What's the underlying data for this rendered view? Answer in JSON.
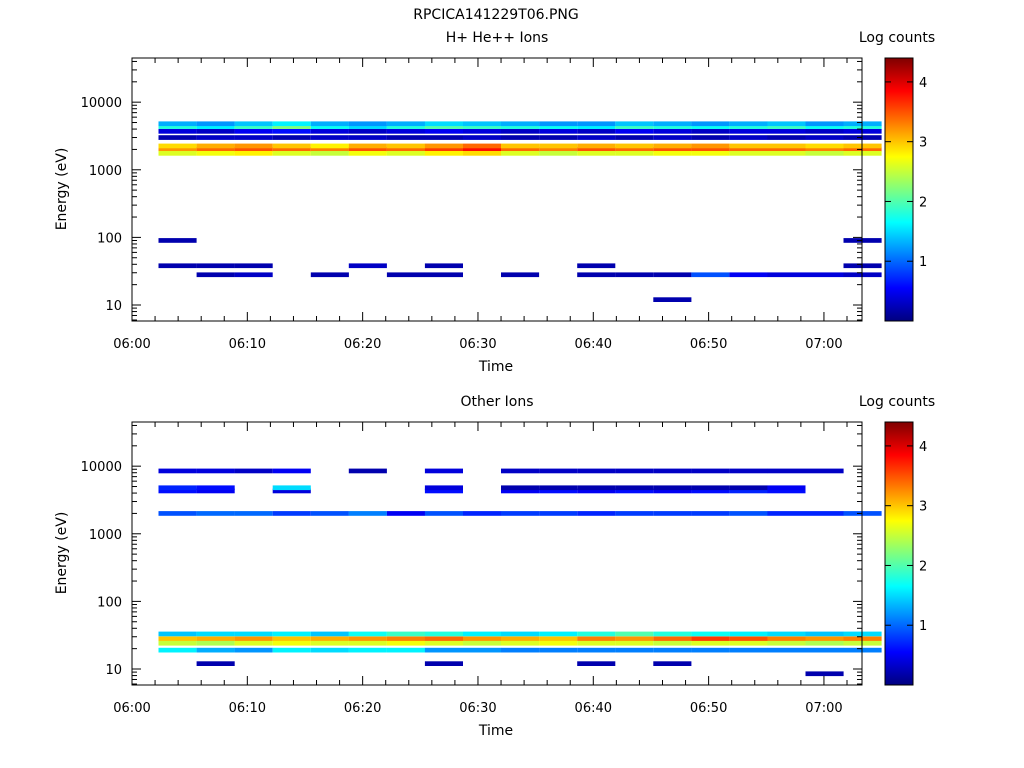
{
  "figure_title": "RPCICA141229T06.PNG",
  "colormap": [
    "#00007f",
    "#0000ff",
    "#007fff",
    "#00ffff",
    "#7fff7f",
    "#ffff00",
    "#ff7f00",
    "#ff0000",
    "#7f0000"
  ],
  "chart_data": [
    {
      "type": "heatmap",
      "title": "H+ He++ Ions",
      "xlabel": "Time",
      "ylabel": "Energy (eV)",
      "x_ticks": [
        "06:00",
        "06:10",
        "06:20",
        "06:30",
        "06:40",
        "06:50",
        "07:00"
      ],
      "xlim_minutes": [
        0,
        63.3
      ],
      "ylim": [
        5.8,
        45000
      ],
      "y_scale": "log",
      "y_ticks": [
        "10",
        "100",
        "1000",
        "10000"
      ],
      "colorbar": {
        "label": "Log counts",
        "range": [
          0,
          4.4
        ],
        "ticks": [
          "1",
          "2",
          "3",
          "4"
        ]
      },
      "time_bins_start_minutes": [
        2.3,
        5.6,
        8.9,
        12.2,
        15.5,
        18.8,
        22.1,
        25.4,
        28.7,
        32.0,
        35.3,
        38.6,
        41.9,
        45.2,
        48.5,
        51.8,
        55.1,
        58.4,
        61.7
      ],
      "energy_bands_ev": [
        {
          "energy": 2000,
          "values": [
            3.2,
            3.4,
            3.5,
            3.4,
            3.3,
            3.5,
            3.4,
            3.6,
            3.8,
            3.4,
            3.3,
            3.5,
            3.4,
            3.5,
            3.5,
            3.4,
            3.4,
            3.3,
            3.4
          ]
        },
        {
          "energy": 2250,
          "values": [
            2.9,
            3.1,
            3.2,
            3.0,
            2.8,
            3.1,
            3.0,
            3.2,
            3.4,
            3.0,
            3.0,
            3.1,
            3.0,
            3.1,
            3.2,
            3.0,
            3.0,
            2.9,
            3.0
          ]
        },
        {
          "energy": 1750,
          "values": [
            2.6,
            2.7,
            2.8,
            2.6,
            2.5,
            2.7,
            2.6,
            2.8,
            2.9,
            2.6,
            2.5,
            2.6,
            2.6,
            2.7,
            2.7,
            2.6,
            2.6,
            2.5,
            2.6
          ]
        },
        {
          "energy": 4200,
          "values": [
            1.8,
            1.6,
            1.9,
            2.2,
            1.7,
            1.5,
            1.8,
            2.0,
            1.9,
            1.8,
            1.7,
            1.6,
            1.9,
            1.8,
            1.7,
            1.8,
            1.9,
            1.7,
            1.8
          ]
        },
        {
          "energy": 4800,
          "values": [
            1.3,
            1.2,
            1.4,
            1.6,
            1.3,
            1.2,
            1.3,
            1.5,
            1.4,
            1.3,
            1.2,
            1.2,
            1.4,
            1.3,
            1.2,
            1.3,
            1.4,
            1.2,
            1.3
          ]
        },
        {
          "energy": 3700,
          "values": [
            0.4,
            0.3,
            0.5,
            0.6,
            0.4,
            0.3,
            0.4,
            0.5,
            0.4,
            0.3,
            0.4,
            0.3,
            0.5,
            0.4,
            0.3,
            0.4,
            0.4,
            0.3,
            0.4
          ]
        },
        {
          "energy": 3000,
          "values": [
            0.2,
            0.3,
            0.3,
            0.2,
            0.3,
            0.3,
            0.2,
            0.2,
            0.3,
            0.2,
            0.2,
            0.3,
            0.2,
            0.3,
            0.2,
            0.3,
            0.2,
            0.3,
            0.2
          ]
        },
        {
          "energy": 28,
          "values": [
            0,
            0.2,
            0.3,
            0,
            0.2,
            0,
            0.2,
            0.2,
            0,
            0.2,
            0,
            0.2,
            0.2,
            0.2,
            0.9,
            0.5,
            0.4,
            0.4,
            0.3
          ]
        },
        {
          "energy": 38,
          "values": [
            0.2,
            0.2,
            0.2,
            0,
            0,
            0.3,
            0,
            0.2,
            0,
            0,
            0,
            0.2,
            0,
            0,
            0,
            0,
            0,
            0,
            0.2
          ]
        },
        {
          "energy": 90,
          "values": [
            0.2,
            0,
            0,
            0,
            0,
            0,
            0,
            0,
            0,
            0,
            0,
            0,
            0,
            0,
            0,
            0,
            0,
            0,
            0.2
          ]
        },
        {
          "energy": 12,
          "values": [
            0,
            0,
            0,
            0,
            0,
            0,
            0,
            0,
            0,
            0,
            0,
            0,
            0,
            0.2,
            0,
            0,
            0,
            0,
            0
          ]
        }
      ]
    },
    {
      "type": "heatmap",
      "title": "Other Ions",
      "xlabel": "Time",
      "ylabel": "Energy (eV)",
      "x_ticks": [
        "06:00",
        "06:10",
        "06:20",
        "06:30",
        "06:40",
        "06:50",
        "07:00"
      ],
      "xlim_minutes": [
        0,
        63.3
      ],
      "ylim": [
        5.8,
        45000
      ],
      "y_scale": "log",
      "y_ticks": [
        "10",
        "100",
        "1000",
        "10000"
      ],
      "colorbar": {
        "label": "Log counts",
        "range": [
          0,
          4.4
        ],
        "ticks": [
          "1",
          "2",
          "3",
          "4"
        ]
      },
      "time_bins_start_minutes": [
        2.3,
        5.6,
        8.9,
        12.2,
        15.5,
        18.8,
        22.1,
        25.4,
        28.7,
        32.0,
        35.3,
        38.6,
        41.9,
        45.2,
        48.5,
        51.8,
        55.1,
        58.4,
        61.7
      ],
      "energy_bands_ev": [
        {
          "energy": 28,
          "values": [
            3.0,
            3.1,
            3.2,
            3.0,
            3.1,
            3.2,
            3.3,
            3.4,
            3.2,
            3.1,
            3.0,
            3.3,
            3.2,
            3.4,
            3.6,
            3.5,
            3.3,
            3.2,
            3.3
          ]
        },
        {
          "energy": 24,
          "values": [
            2.5,
            2.4,
            2.6,
            2.7,
            2.6,
            2.6,
            2.7,
            2.6,
            2.5,
            2.6,
            2.7,
            2.6,
            2.6,
            2.5,
            2.6,
            2.6,
            2.5,
            2.4,
            2.5
          ]
        },
        {
          "energy": 33,
          "values": [
            1.4,
            1.5,
            1.5,
            1.6,
            1.4,
            1.7,
            1.9,
            1.8,
            1.6,
            1.5,
            1.6,
            1.8,
            2.0,
            1.8,
            1.7,
            1.6,
            1.5,
            1.4,
            1.5
          ]
        },
        {
          "energy": 19,
          "values": [
            1.6,
            1.3,
            1.2,
            1.6,
            1.5,
            1.6,
            1.6,
            1.2,
            1.2,
            1.1,
            1.1,
            1.1,
            1.1,
            1.1,
            1.1,
            1.1,
            1.1,
            1.1,
            1.1
          ]
        },
        {
          "energy": 2000,
          "values": [
            0.9,
            1.0,
            1.0,
            0.8,
            0.9,
            1.1,
            0.5,
            0.9,
            0.7,
            0.8,
            0.8,
            0.7,
            0.8,
            0.8,
            0.8,
            0.9,
            0.7,
            0.7,
            0.9
          ]
        },
        {
          "energy": 4300,
          "values": [
            0.6,
            0.5,
            0,
            0.4,
            0,
            0,
            0,
            0.6,
            0,
            0.5,
            0.6,
            0.5,
            0.6,
            0.5,
            0.6,
            0.7,
            0.6,
            0,
            0
          ]
        },
        {
          "energy": 8500,
          "values": [
            0.4,
            0.4,
            0.3,
            0.5,
            0,
            0.2,
            0,
            0.4,
            0,
            0.3,
            0.3,
            0.3,
            0.3,
            0.3,
            0.3,
            0.3,
            0.3,
            0.3,
            0
          ]
        },
        {
          "energy": 4800,
          "values": [
            0.7,
            0.6,
            0,
            1.5,
            0,
            0,
            0,
            0.4,
            0,
            0.2,
            0.2,
            0.2,
            0.2,
            0.2,
            0.2,
            0.2,
            0.5,
            0,
            0
          ]
        },
        {
          "energy": 12,
          "values": [
            0,
            0.2,
            0,
            0,
            0,
            0,
            0,
            0.2,
            0,
            0,
            0,
            0.2,
            0,
            0.2,
            0,
            0,
            0,
            0,
            0
          ]
        },
        {
          "energy": 8.5,
          "values": [
            0,
            0,
            0,
            0,
            0,
            0,
            0,
            0,
            0,
            0,
            0,
            0,
            0,
            0,
            0,
            0,
            0,
            0.2,
            0
          ]
        }
      ]
    }
  ]
}
